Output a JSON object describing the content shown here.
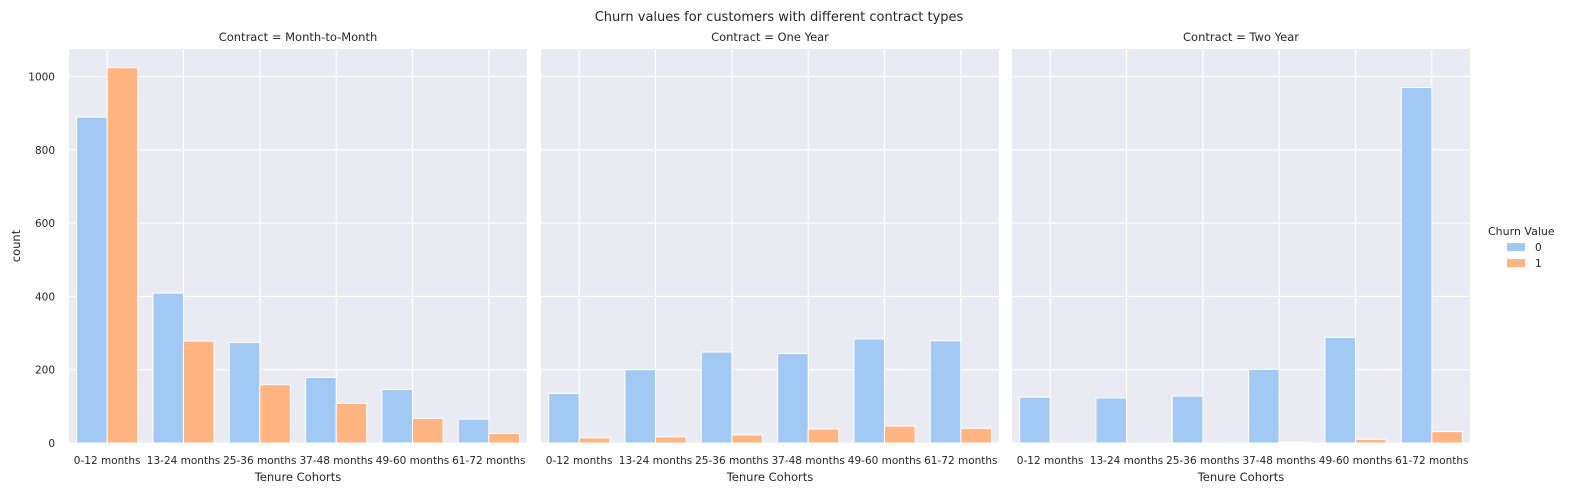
{
  "chart_data": {
    "type": "bar",
    "title": "Churn values for customers with different contract types",
    "xlabel": "Tenure Cohorts",
    "ylabel": "count",
    "ylim": [
      0,
      1075
    ],
    "yticks": [
      0,
      200,
      400,
      600,
      800,
      1000
    ],
    "grid": true,
    "legend": {
      "title": "Churn Value",
      "placement": "right",
      "entries": [
        "0",
        "1"
      ]
    },
    "colors": {
      "0": "#a1c9f4",
      "1": "#ffb482"
    },
    "categories": [
      "0-12 months",
      "13-24 months",
      "25-36 months",
      "37-48 months",
      "49-60 months",
      "61-72 months"
    ],
    "panels": [
      {
        "title": "Contract = Month-to-Month",
        "series": [
          {
            "name": "0",
            "values": [
              889,
              409,
              274,
              179,
              146,
              65
            ]
          },
          {
            "name": "1",
            "values": [
              1024,
              278,
              159,
              108,
              67,
              26
            ]
          }
        ]
      },
      {
        "title": "Contract = One Year",
        "series": [
          {
            "name": "0",
            "values": [
              135,
              200,
              248,
              244,
              284,
              279
            ]
          },
          {
            "name": "1",
            "values": [
              14,
              17,
              22,
              38,
              46,
              40
            ]
          }
        ]
      },
      {
        "title": "Contract = Two Year",
        "series": [
          {
            "name": "0",
            "values": [
              125,
              123,
              128,
              201,
              288,
              970
            ]
          },
          {
            "name": "1",
            "values": [
              0,
              0,
              0,
              3,
              10,
              31
            ]
          }
        ]
      }
    ]
  }
}
